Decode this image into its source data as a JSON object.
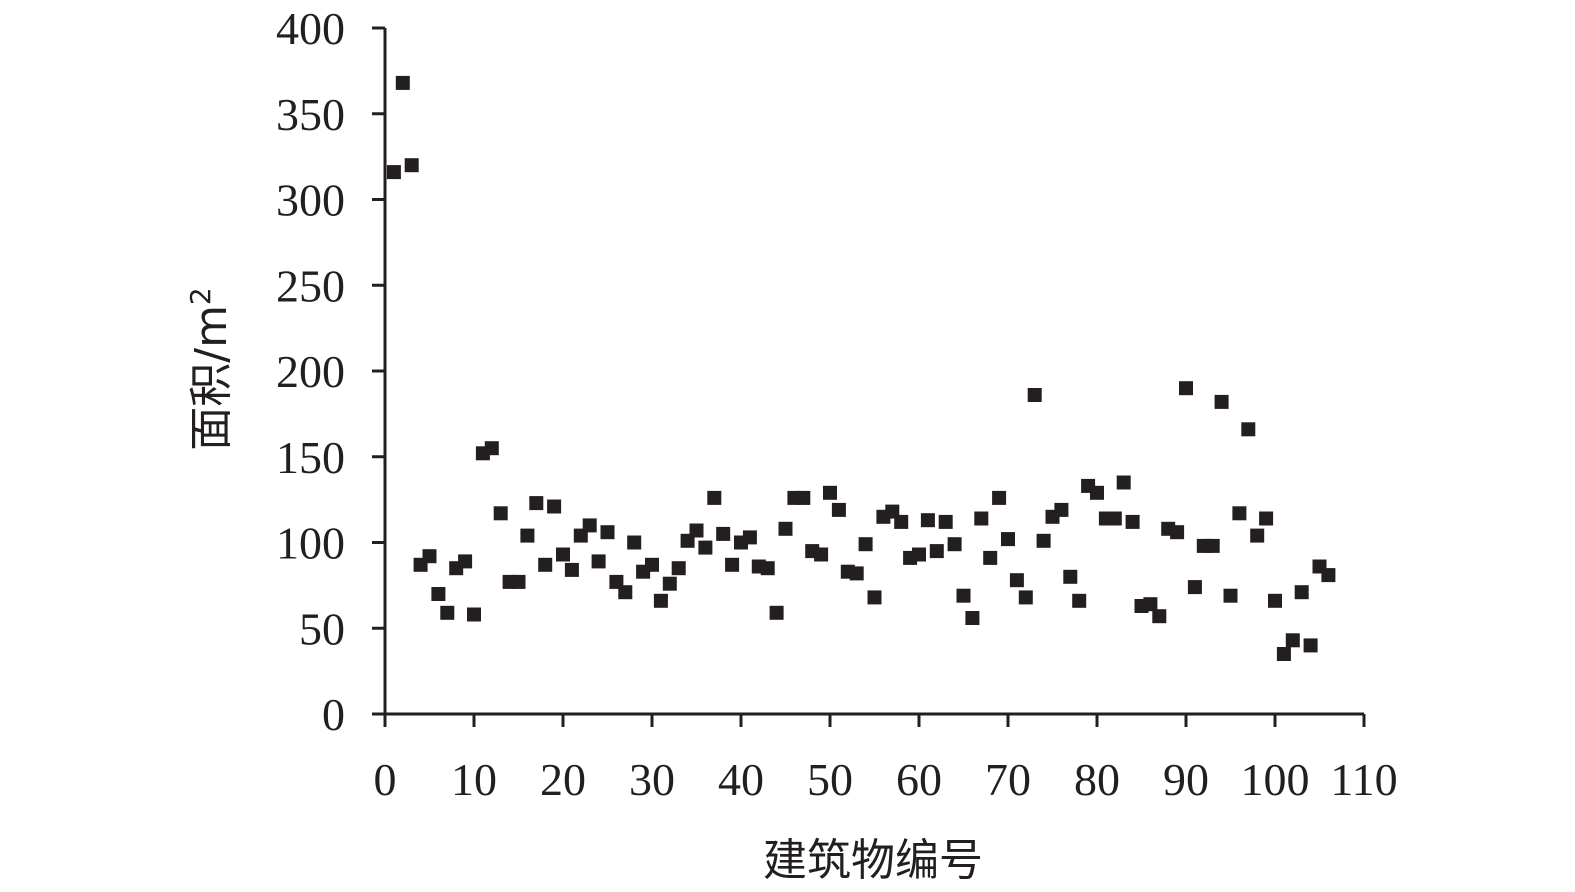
{
  "chart_data": {
    "type": "scatter",
    "title": "",
    "xlabel": "建筑物编号",
    "ylabel_main": "面积/m",
    "ylabel_sup": "2",
    "xlim": [
      0,
      110
    ],
    "ylim": [
      0,
      400
    ],
    "x_ticks": [
      "0",
      "10",
      "20",
      "30",
      "40",
      "50",
      "60",
      "70",
      "80",
      "90",
      "100",
      "110"
    ],
    "y_ticks": [
      "0",
      "50",
      "100",
      "150",
      "200",
      "250",
      "300",
      "350",
      "400"
    ],
    "grid": false,
    "legend": "none",
    "marker": "square",
    "marker_color": "#231f20",
    "series": [
      {
        "points": [
          [
            1,
            316
          ],
          [
            2,
            368
          ],
          [
            3,
            320
          ],
          [
            4,
            87
          ],
          [
            5,
            92
          ],
          [
            6,
            70
          ],
          [
            7,
            59
          ],
          [
            8,
            85
          ],
          [
            9,
            89
          ],
          [
            10,
            58
          ],
          [
            11,
            152
          ],
          [
            12,
            155
          ],
          [
            13,
            117
          ],
          [
            14,
            77
          ],
          [
            15,
            77
          ],
          [
            16,
            104
          ],
          [
            17,
            123
          ],
          [
            18,
            87
          ],
          [
            19,
            121
          ],
          [
            20,
            93
          ],
          [
            21,
            84
          ],
          [
            22,
            104
          ],
          [
            23,
            110
          ],
          [
            24,
            89
          ],
          [
            25,
            106
          ],
          [
            26,
            77
          ],
          [
            27,
            71
          ],
          [
            28,
            100
          ],
          [
            29,
            83
          ],
          [
            30,
            87
          ],
          [
            31,
            66
          ],
          [
            32,
            76
          ],
          [
            33,
            85
          ],
          [
            34,
            101
          ],
          [
            35,
            107
          ],
          [
            36,
            97
          ],
          [
            37,
            126
          ],
          [
            38,
            105
          ],
          [
            39,
            87
          ],
          [
            40,
            100
          ],
          [
            41,
            103
          ],
          [
            42,
            86
          ],
          [
            43,
            85
          ],
          [
            44,
            59
          ],
          [
            45,
            108
          ],
          [
            46,
            126
          ],
          [
            47,
            126
          ],
          [
            48,
            95
          ],
          [
            49,
            93
          ],
          [
            50,
            129
          ],
          [
            51,
            119
          ],
          [
            52,
            83
          ],
          [
            53,
            82
          ],
          [
            54,
            99
          ],
          [
            55,
            68
          ],
          [
            56,
            115
          ],
          [
            57,
            118
          ],
          [
            58,
            112
          ],
          [
            59,
            91
          ],
          [
            60,
            93
          ],
          [
            61,
            113
          ],
          [
            62,
            95
          ],
          [
            63,
            112
          ],
          [
            64,
            99
          ],
          [
            65,
            69
          ],
          [
            66,
            56
          ],
          [
            67,
            114
          ],
          [
            68,
            91
          ],
          [
            69,
            126
          ],
          [
            70,
            102
          ],
          [
            71,
            78
          ],
          [
            72,
            68
          ],
          [
            73,
            186
          ],
          [
            74,
            101
          ],
          [
            75,
            115
          ],
          [
            76,
            119
          ],
          [
            77,
            80
          ],
          [
            78,
            66
          ],
          [
            79,
            133
          ],
          [
            80,
            129
          ],
          [
            81,
            114
          ],
          [
            82,
            114
          ],
          [
            83,
            135
          ],
          [
            84,
            112
          ],
          [
            85,
            63
          ],
          [
            86,
            64
          ],
          [
            87,
            57
          ],
          [
            88,
            108
          ],
          [
            89,
            106
          ],
          [
            90,
            190
          ],
          [
            91,
            74
          ],
          [
            92,
            98
          ],
          [
            93,
            98
          ],
          [
            94,
            182
          ],
          [
            95,
            69
          ],
          [
            96,
            117
          ],
          [
            97,
            166
          ],
          [
            98,
            104
          ],
          [
            99,
            114
          ],
          [
            100,
            66
          ],
          [
            101,
            35
          ],
          [
            102,
            43
          ],
          [
            103,
            71
          ],
          [
            104,
            40
          ],
          [
            105,
            86
          ],
          [
            106,
            81
          ]
        ]
      }
    ]
  }
}
